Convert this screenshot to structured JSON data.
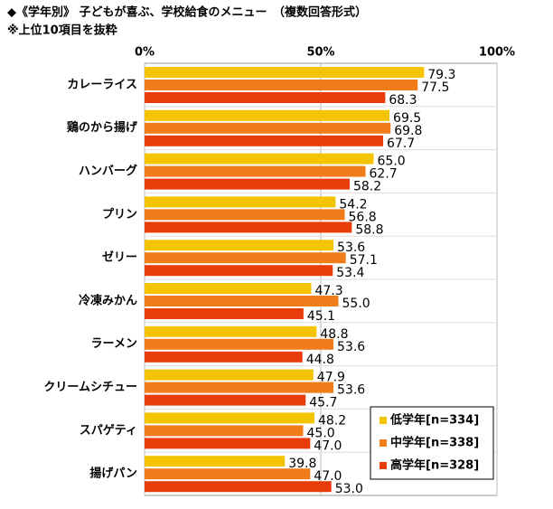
{
  "chart_data": {
    "type": "barh",
    "title": "◆《学年別》 子どもが喜ぶ、学校給食のメニュー　（複数回答形式）",
    "subtitle": "※上位10項目を抜粋",
    "categories": [
      "カレーライス",
      "鶏のから揚げ",
      "ハンバーグ",
      "プリン",
      "ゼリー",
      "冷凍みかん",
      "ラーメン",
      "クリームシチュー",
      "スパゲティ",
      "揚げパン"
    ],
    "series": [
      {
        "name": "低学年[n=334]",
        "color": "#f5c400",
        "values": [
          79.3,
          69.5,
          65.0,
          54.2,
          53.6,
          47.3,
          48.8,
          47.9,
          48.2,
          39.8
        ],
        "value_labels": [
          "79.3",
          "69.5",
          "65.0",
          "54.2",
          "53.6",
          "47.3",
          "48.8",
          "47.9",
          "48.2",
          "39.8"
        ]
      },
      {
        "name": "中学年[n=338]",
        "color": "#f07d1a",
        "values": [
          77.5,
          69.8,
          62.7,
          56.8,
          57.1,
          55.0,
          53.6,
          53.6,
          45.0,
          47.0
        ],
        "value_labels": [
          "77.5",
          "69.8",
          "62.7",
          "56.8",
          "57.1",
          "55.0",
          "53.6",
          "53.6",
          "45.0",
          "47.0"
        ]
      },
      {
        "name": "高学年[n=328]",
        "color": "#e83d0a",
        "values": [
          68.3,
          67.7,
          58.2,
          58.8,
          53.4,
          45.1,
          44.8,
          45.7,
          47.0,
          53.0
        ],
        "value_labels": [
          "68.3",
          "67.7",
          "58.2",
          "58.8",
          "53.4",
          "45.1",
          "44.8",
          "45.7",
          "47.0",
          "53.0"
        ]
      }
    ],
    "xlim": [
      0,
      100
    ],
    "xticks": [
      {
        "value": 0,
        "label": "0%"
      },
      {
        "value": 50,
        "label": "50%"
      },
      {
        "value": 100,
        "label": "100%"
      }
    ],
    "grid": true,
    "legend": "lower right"
  }
}
